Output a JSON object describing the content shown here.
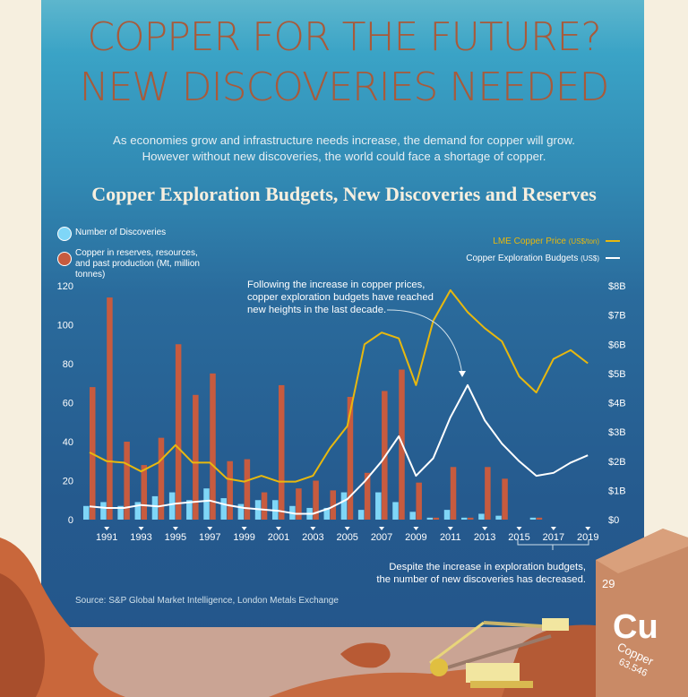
{
  "header": {
    "title_line1": "COPPER FOR THE FUTURE?",
    "title_line2": "NEW DISCOVERIES NEEDED",
    "subtitle": "As economies grow and infrastructure needs increase, the demand for copper will grow. However without new discoveries, the world could face a shortage of copper."
  },
  "annotations": {
    "top": "Following the increase in copper prices, copper exploration budgets have reached new heights in the last decade.",
    "bottom_line1": "Despite the increase in exploration budgets,",
    "bottom_line2": "the number of new discoveries has decreased."
  },
  "source": "Source: S&P Global Market Intelligence, London Metals Exchange",
  "element_tile": {
    "number": "29",
    "symbol": "Cu",
    "name": "Copper",
    "mass": "63.546"
  },
  "colors": {
    "discoveries": "#7fd6f7",
    "reserves": "#c75b3f",
    "price": "#e8b80e",
    "budgets": "#ffffff",
    "title": "#a85a3a"
  },
  "chart_data": {
    "type": "bar+line",
    "title": "Copper Exploration Budgets, New Discoveries and Reserves",
    "legend": {
      "discoveries": "Number of Discoveries",
      "reserves": "Copper in reserves, resources, and past production (Mt, million tonnes)",
      "price": "LME Copper Price",
      "price_unit": "(US$/ton)",
      "budgets": "Copper Exploration  Budgets",
      "budgets_unit": "(US$)"
    },
    "x": [
      1990,
      1991,
      1992,
      1993,
      1994,
      1995,
      1996,
      1997,
      1998,
      1999,
      2000,
      2001,
      2002,
      2003,
      2004,
      2005,
      2006,
      2007,
      2008,
      2009,
      2010,
      2011,
      2012,
      2013,
      2014,
      2015,
      2016,
      2017,
      2018,
      2019
    ],
    "x_tick_labels": [
      "1991",
      "1993",
      "1995",
      "1997",
      "1999",
      "2001",
      "2003",
      "2005",
      "2007",
      "2009",
      "2011",
      "2013",
      "2015",
      "2017",
      "2019"
    ],
    "left_axis": {
      "range": [
        0,
        120
      ],
      "ticks": [
        "0",
        "20",
        "40",
        "60",
        "80",
        "100",
        "120"
      ]
    },
    "right_axis": {
      "range": [
        0,
        8
      ],
      "ticks": [
        "$0",
        "$1B",
        "$2B",
        "$3B",
        "$4B",
        "$5B",
        "$6B",
        "$7B",
        "$8B"
      ]
    },
    "series": [
      {
        "name": "Number of Discoveries",
        "type": "bar",
        "axis": "left",
        "values": [
          7,
          9,
          7,
          9,
          12,
          14,
          10,
          16,
          11,
          8,
          10,
          10,
          7,
          6,
          6,
          14,
          5,
          14,
          9,
          4,
          1,
          5,
          1,
          3,
          2,
          0,
          1,
          0,
          0,
          0
        ]
      },
      {
        "name": "Copper in reserves, resources, and past production (Mt, million tonnes)",
        "type": "bar",
        "axis": "left",
        "values": [
          68,
          114,
          40,
          28,
          42,
          90,
          64,
          75,
          30,
          31,
          14,
          69,
          16,
          20,
          15,
          63,
          24,
          66,
          77,
          19,
          1,
          27,
          1,
          27,
          21,
          0,
          1,
          0,
          0,
          0
        ]
      },
      {
        "name": "LME Copper Price",
        "type": "line",
        "axis": "right",
        "values": [
          2.3,
          2.0,
          1.95,
          1.65,
          1.95,
          2.55,
          1.95,
          1.95,
          1.4,
          1.3,
          1.5,
          1.3,
          1.3,
          1.5,
          2.45,
          3.2,
          6.0,
          6.4,
          6.2,
          4.6,
          6.8,
          7.85,
          7.1,
          6.55,
          6.1,
          4.9,
          4.35,
          5.5,
          5.8,
          5.35
        ]
      },
      {
        "name": "Copper Exploration  Budgets",
        "type": "line",
        "axis": "right",
        "values": [
          0.45,
          0.4,
          0.4,
          0.5,
          0.45,
          0.55,
          0.6,
          0.65,
          0.5,
          0.4,
          0.35,
          0.3,
          0.2,
          0.2,
          0.4,
          0.7,
          1.3,
          2.0,
          2.85,
          1.5,
          2.1,
          3.5,
          4.6,
          3.4,
          2.6,
          2.0,
          1.5,
          1.6,
          1.95,
          2.2
        ]
      }
    ]
  }
}
